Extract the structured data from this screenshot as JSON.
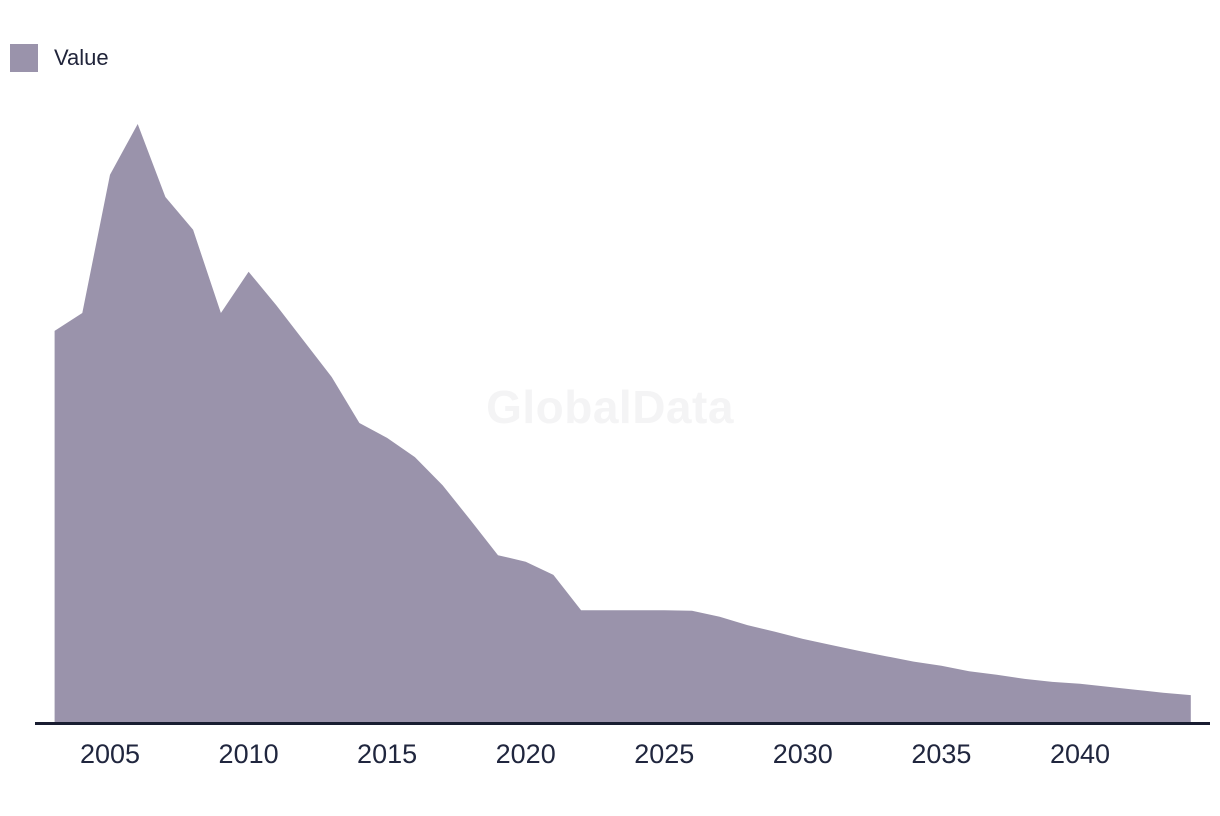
{
  "legend": {
    "label": "Value",
    "swatch_color": "#9a93ab"
  },
  "watermark": {
    "text": "GlobalData"
  },
  "chart_data": {
    "type": "area",
    "title": "",
    "xlabel": "",
    "ylabel": "",
    "x_ticks": [
      2005,
      2010,
      2015,
      2020,
      2025,
      2030,
      2035,
      2040
    ],
    "x_range": [
      2003,
      2044
    ],
    "ylim": [
      0,
      100
    ],
    "y_axis_visible": false,
    "grid": false,
    "legend_position": "top-left",
    "axis_line_color": "#191d31",
    "series": [
      {
        "name": "Value",
        "color": "#9a93ab",
        "x": [
          2003,
          2004,
          2005,
          2006,
          2007,
          2008,
          2009,
          2010,
          2011,
          2012,
          2013,
          2014,
          2015,
          2016,
          2017,
          2018,
          2019,
          2020,
          2021,
          2022,
          2023,
          2024,
          2025,
          2026,
          2027,
          2028,
          2029,
          2030,
          2031,
          2032,
          2033,
          2034,
          2035,
          2036,
          2037,
          2038,
          2039,
          2040,
          2041,
          2042,
          2043,
          2044
        ],
        "values": [
          65.4,
          68.4,
          91.5,
          100,
          87.8,
          82.3,
          68.4,
          75.3,
          69.7,
          63.7,
          57.7,
          50.0,
          47.5,
          44.3,
          39.6,
          33.8,
          27.9,
          26.8,
          24.6,
          18.7,
          18.7,
          18.7,
          18.7,
          18.6,
          17.6,
          16.2,
          15.1,
          13.9,
          12.9,
          11.9,
          11.0,
          10.1,
          9.4,
          8.5,
          7.9,
          7.2,
          6.7,
          6.4,
          5.9,
          5.4,
          4.9,
          4.5
        ]
      }
    ]
  }
}
